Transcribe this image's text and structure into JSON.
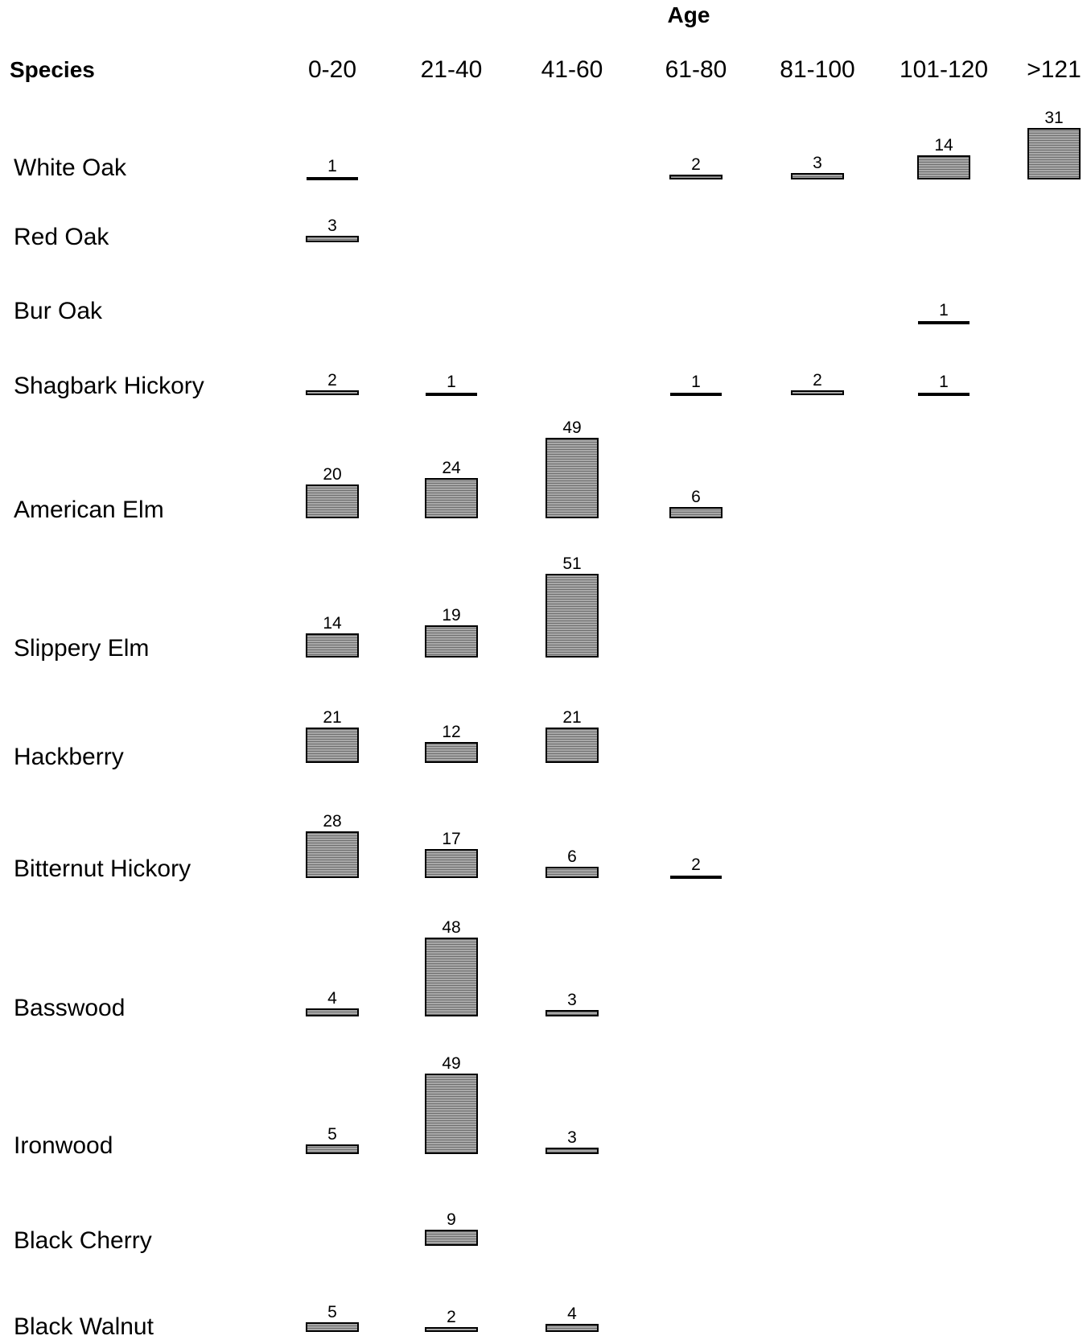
{
  "chart_data": {
    "type": "bar",
    "title": "Age",
    "row_header": "Species",
    "categories": [
      "0-20",
      "21-40",
      "41-60",
      "61-80",
      "81-100",
      "101-120",
      ">121"
    ],
    "series": [
      {
        "name": "White Oak",
        "values": [
          1,
          null,
          null,
          2,
          3,
          14,
          31
        ]
      },
      {
        "name": "Red Oak",
        "values": [
          3,
          null,
          null,
          null,
          null,
          null,
          null
        ]
      },
      {
        "name": "Bur Oak",
        "values": [
          null,
          null,
          null,
          null,
          null,
          1,
          null
        ]
      },
      {
        "name": "Shagbark Hickory",
        "values": [
          2,
          1,
          null,
          1,
          2,
          1,
          null
        ]
      },
      {
        "name": "American Elm",
        "values": [
          20,
          24,
          49,
          6,
          null,
          null,
          null
        ]
      },
      {
        "name": "Slippery Elm",
        "values": [
          14,
          19,
          51,
          null,
          null,
          null,
          null
        ]
      },
      {
        "name": "Hackberry",
        "values": [
          21,
          12,
          21,
          null,
          null,
          null,
          null
        ]
      },
      {
        "name": "Bitternut Hickory",
        "values": [
          28,
          17,
          6,
          2,
          null,
          null,
          null
        ]
      },
      {
        "name": "Basswood",
        "values": [
          4,
          48,
          3,
          null,
          null,
          null,
          null
        ]
      },
      {
        "name": "Ironwood",
        "values": [
          5,
          49,
          3,
          null,
          null,
          null,
          null
        ]
      },
      {
        "name": "Black Cherry",
        "values": [
          null,
          9,
          null,
          null,
          null,
          null,
          null
        ]
      },
      {
        "name": "Black Walnut",
        "values": [
          5,
          2,
          4,
          null,
          null,
          null,
          null
        ]
      }
    ],
    "colors": {
      "bar_fill": "#9a9a9a",
      "bar_stroke": "#000000"
    }
  }
}
